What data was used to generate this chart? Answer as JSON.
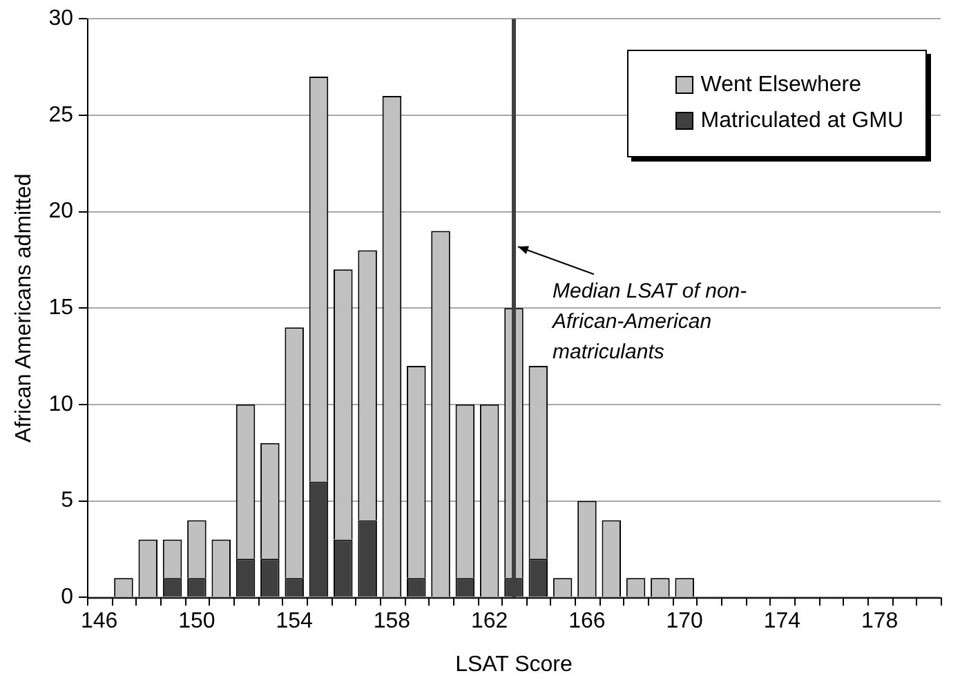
{
  "chart_data": {
    "type": "bar",
    "stacked": true,
    "xlabel": "LSAT Score",
    "ylabel": "African Americans admitted",
    "x": [
      146,
      147,
      148,
      149,
      150,
      151,
      152,
      153,
      154,
      155,
      156,
      157,
      158,
      159,
      160,
      161,
      162,
      163,
      164,
      165,
      166,
      167,
      168,
      169,
      170,
      171,
      172,
      173,
      174,
      175,
      176,
      177,
      178,
      179,
      180
    ],
    "series": [
      {
        "name": "Matriculated at GMU",
        "color": "#404040",
        "values": [
          0,
          0,
          0,
          1,
          1,
          0,
          2,
          2,
          1,
          6,
          3,
          4,
          0,
          1,
          0,
          1,
          0,
          1,
          2,
          0,
          0,
          0,
          0,
          0,
          0,
          0,
          0,
          0,
          0,
          0,
          0,
          0,
          0,
          0,
          0
        ]
      },
      {
        "name": "Went Elsewhere",
        "color": "#c0c0c0",
        "values": [
          0,
          1,
          3,
          2,
          3,
          3,
          8,
          6,
          13,
          21,
          14,
          14,
          26,
          11,
          19,
          9,
          10,
          14,
          10,
          1,
          5,
          4,
          1,
          1,
          1,
          0,
          0,
          0,
          0,
          0,
          0,
          0,
          0,
          0,
          0
        ]
      }
    ],
    "xlim": [
      145.5,
      180.5
    ],
    "xticks": [
      146,
      150,
      154,
      158,
      162,
      166,
      170,
      174,
      178
    ],
    "ylim": [
      0,
      30
    ],
    "yticks": [
      0,
      5,
      10,
      15,
      20,
      25,
      30
    ],
    "grid": "y",
    "legend": "top right",
    "ref_lines": [
      {
        "axis": "x",
        "value": 163,
        "label": "Median LSAT of non-African-American matriculants",
        "color": "#404040"
      }
    ]
  }
}
